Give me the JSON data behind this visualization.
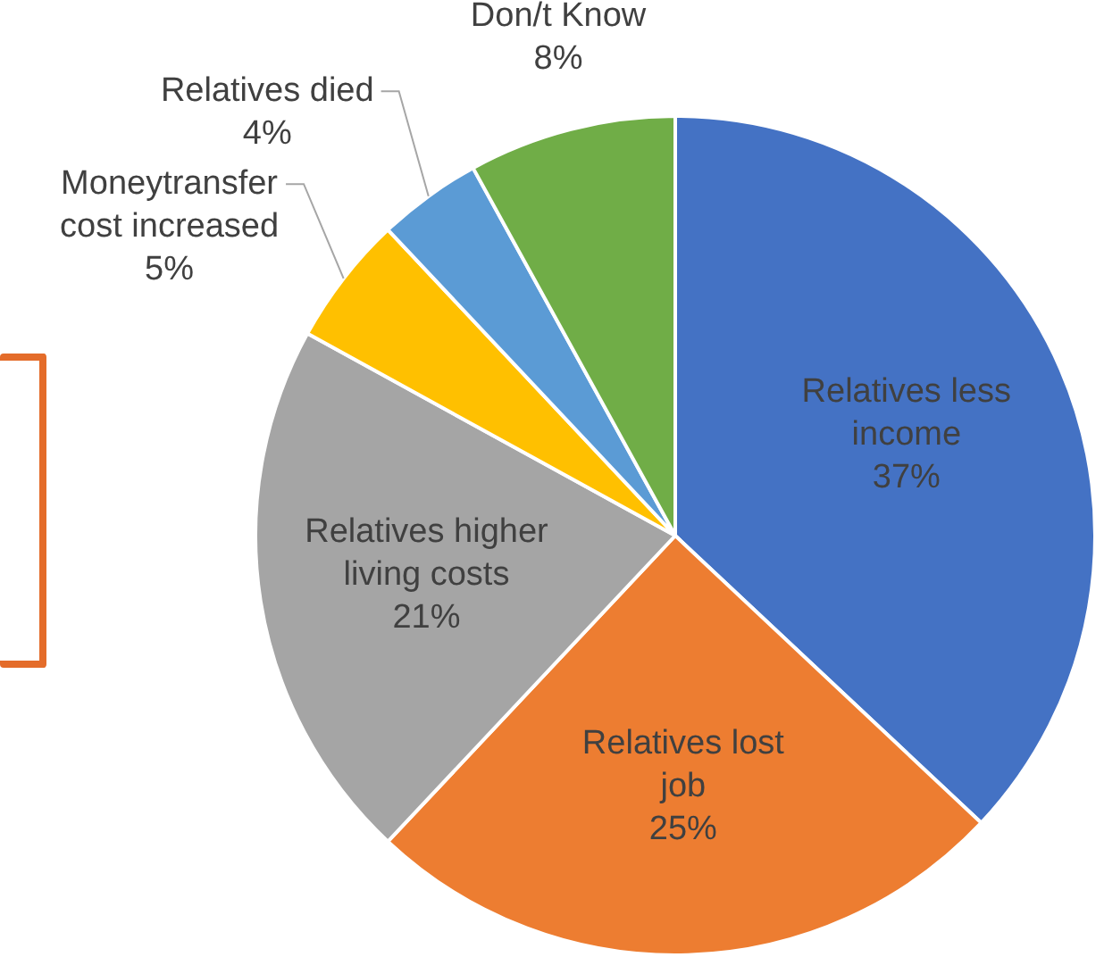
{
  "chart_data": {
    "type": "pie",
    "categories": [
      "Relatives less income",
      "Relatives lost job",
      "Relatives higher living costs",
      "Moneytransfer cost increased",
      "Relatives died",
      "Don/t Know"
    ],
    "values": [
      37,
      25,
      21,
      5,
      4,
      8
    ],
    "colors": [
      "#4472c4",
      "#ed7d31",
      "#a5a5a5",
      "#ffc000",
      "#5b9bd5",
      "#70ad47"
    ],
    "value_labels": [
      "37%",
      "25%",
      "21%",
      "5%",
      "4%",
      "8%"
    ],
    "legend": false
  }
}
